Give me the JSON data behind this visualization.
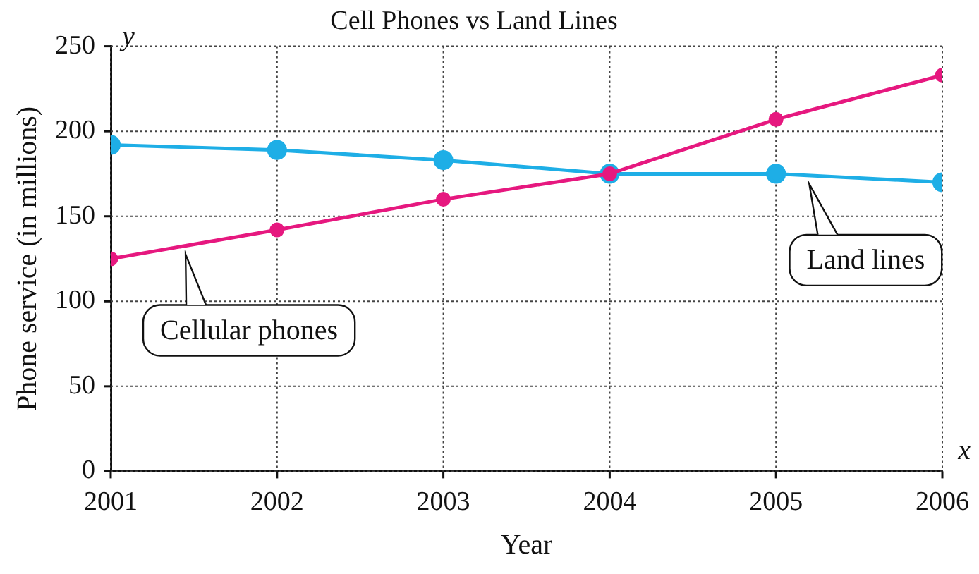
{
  "chart_data": {
    "type": "line",
    "title": "Cell Phones vs Land Lines",
    "xlabel": "Year",
    "ylabel": "Phone service (in millions)",
    "x": [
      2001,
      2002,
      2003,
      2004,
      2005,
      2006
    ],
    "series": [
      {
        "name": "Cellular phones",
        "color": "#e6187f",
        "values": [
          125,
          142,
          160,
          175,
          207,
          233
        ]
      },
      {
        "name": "Land lines",
        "color": "#1eaee6",
        "values": [
          192,
          189,
          183,
          175,
          175,
          170
        ]
      }
    ],
    "annotations": [
      "y",
      "x"
    ],
    "xlim": [
      2001,
      2006
    ],
    "xticks": [
      2001,
      2002,
      2003,
      2004,
      2005,
      2006
    ],
    "ylim": [
      0,
      250
    ],
    "yticks": [
      0,
      50,
      100,
      150,
      200,
      250
    ],
    "grid": true,
    "legend": false,
    "marker": "circle",
    "line_style": "solid"
  }
}
